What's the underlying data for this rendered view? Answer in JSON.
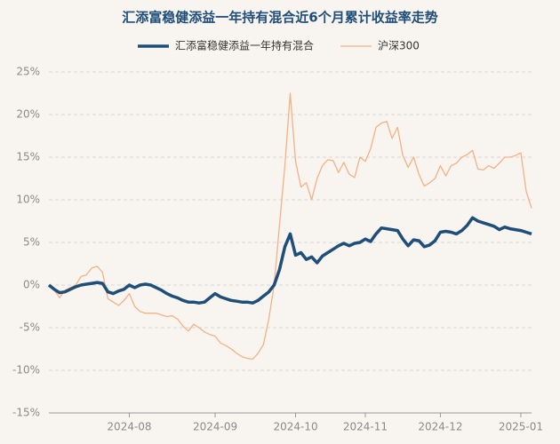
{
  "chart_data": {
    "type": "line",
    "title": "汇添富稳健添益一年持有混合近6个月累计收益率走势",
    "categories": [
      null,
      null,
      null,
      null,
      null,
      null,
      null,
      null,
      null,
      null,
      null,
      null,
      null,
      null,
      null,
      "2024-08",
      null,
      null,
      null,
      null,
      null,
      null,
      null,
      null,
      null,
      null,
      null,
      null,
      null,
      null,
      null,
      "2024-09",
      null,
      null,
      null,
      null,
      null,
      null,
      null,
      null,
      null,
      null,
      null,
      null,
      null,
      null,
      "2024-10",
      null,
      null,
      null,
      null,
      null,
      null,
      null,
      null,
      null,
      null,
      null,
      null,
      "2024-11",
      null,
      null,
      null,
      null,
      null,
      null,
      null,
      null,
      null,
      null,
      null,
      null,
      null,
      "2024-12",
      null,
      null,
      null,
      null,
      null,
      null,
      null,
      null,
      null,
      null,
      null,
      null,
      null,
      null,
      "2025-01",
      null,
      null
    ],
    "series": [
      {
        "name": "汇添富稳健添益一年持有混合",
        "color": "#1f4e79",
        "values": [
          0,
          -0.5,
          -0.9,
          -0.8,
          -0.5,
          -0.2,
          0,
          0.1,
          0.2,
          0.3,
          0.2,
          -0.8,
          -1,
          -0.7,
          -0.5,
          0,
          -0.3,
          0,
          0.1,
          0,
          -0.3,
          -0.6,
          -1,
          -1.3,
          -1.5,
          -1.8,
          -2,
          -2,
          -2.1,
          -2,
          -1.5,
          -1,
          -1.4,
          -1.6,
          -1.8,
          -1.9,
          -2,
          -2,
          -2.1,
          -1.8,
          -1.3,
          -0.8,
          0,
          1.8,
          4.5,
          6,
          3.5,
          3.8,
          3,
          3.3,
          2.6,
          3.4,
          3.8,
          4.2,
          4.6,
          4.9,
          4.6,
          4.9,
          5,
          5.4,
          5.1,
          6,
          6.7,
          6.6,
          6.5,
          6.4,
          5.4,
          4.6,
          5.3,
          5.2,
          4.5,
          4.7,
          5.2,
          6.2,
          6.3,
          6.2,
          6,
          6.4,
          7,
          7.9,
          7.5,
          7.3,
          7.1,
          6.9,
          6.5,
          6.8,
          6.6,
          6.5,
          6.4,
          6.2,
          6
        ]
      },
      {
        "name": "沪深300",
        "color": "#f4b183",
        "values": [
          0,
          -0.6,
          -1.5,
          -0.6,
          -0.3,
          0,
          1,
          1.2,
          2,
          2.2,
          1.5,
          -1.6,
          -2,
          -2.4,
          -1.8,
          -1,
          -2.5,
          -3.1,
          -3.3,
          -3.3,
          -3.3,
          -3.5,
          -3.7,
          -3.6,
          -4,
          -4.8,
          -5.4,
          -4.6,
          -5,
          -5.5,
          -5.8,
          -6,
          -6.8,
          -7.1,
          -7.5,
          -8,
          -8.4,
          -8.6,
          -8.7,
          -8,
          -7,
          -4,
          0,
          7,
          14,
          22.5,
          14.5,
          11.5,
          12,
          10,
          12.5,
          14,
          14.7,
          14.6,
          13.2,
          14.4,
          13,
          12.6,
          15,
          14.5,
          16,
          18.5,
          19,
          19.2,
          17.2,
          18.5,
          15.2,
          13.8,
          15,
          13,
          11.6,
          12,
          12.5,
          14,
          12.8,
          14,
          14.3,
          15,
          15.3,
          15.8,
          13.6,
          13.5,
          14,
          13.7,
          14.3,
          15,
          15,
          15.2,
          15.5,
          11,
          9
        ]
      }
    ],
    "ylim": [
      -15,
      25
    ],
    "yticks": [
      {
        "value": -15,
        "label": "-15%"
      },
      {
        "value": -10,
        "label": "-10%"
      },
      {
        "value": -5,
        "label": "-5%"
      },
      {
        "value": 0,
        "label": "0%"
      },
      {
        "value": 5,
        "label": "5%"
      },
      {
        "value": 10,
        "label": "10%"
      },
      {
        "value": 15,
        "label": "15%"
      },
      {
        "value": 20,
        "label": "20%"
      },
      {
        "value": 25,
        "label": "25%"
      }
    ],
    "grid": true
  }
}
